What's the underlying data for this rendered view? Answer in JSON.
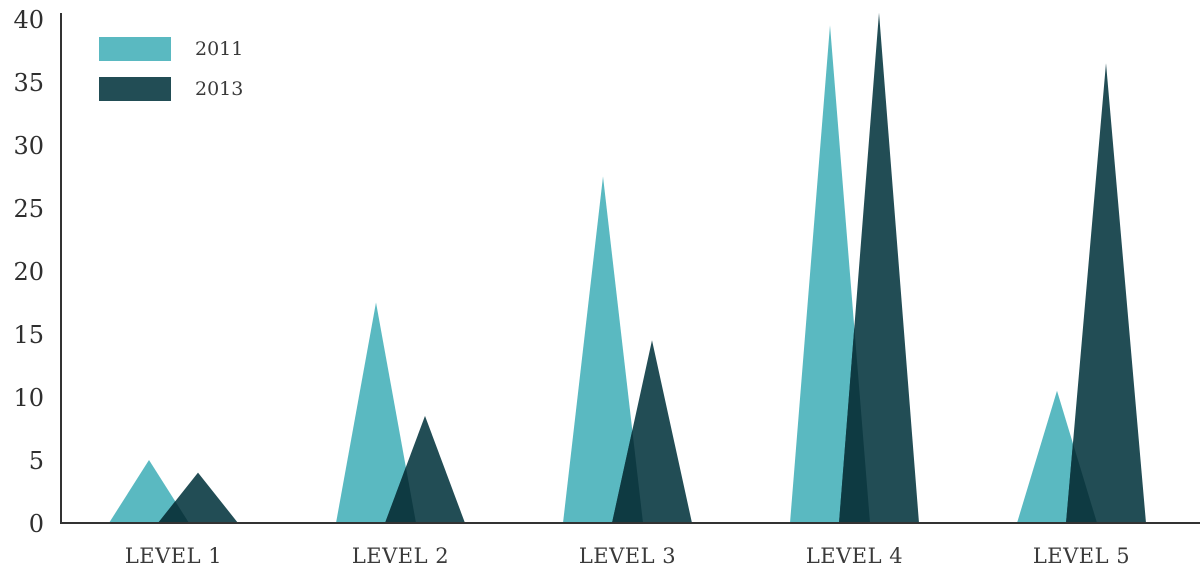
{
  "colors": {
    "series_2011": "#5ab9c1",
    "series_2013": "#224d55",
    "overlap": "#0e3a42",
    "axis": "#333333"
  },
  "chart_data": {
    "type": "area",
    "categories": [
      "LEVEL 1",
      "LEVEL 2",
      "LEVEL 3",
      "LEVEL 4",
      "LEVEL 5"
    ],
    "series": [
      {
        "name": "2011",
        "values": [
          5,
          17.5,
          27.5,
          39.5,
          10.5
        ]
      },
      {
        "name": "2013",
        "values": [
          4,
          8.5,
          14.5,
          40.5,
          36.5
        ]
      }
    ],
    "yticks": [
      "0",
      "5",
      "10",
      "15",
      "20",
      "25",
      "30",
      "35",
      "40"
    ],
    "ylim": [
      0,
      40
    ],
    "title": "",
    "xlabel": "",
    "ylabel": "",
    "legend_position": "top-left",
    "grid": false
  }
}
